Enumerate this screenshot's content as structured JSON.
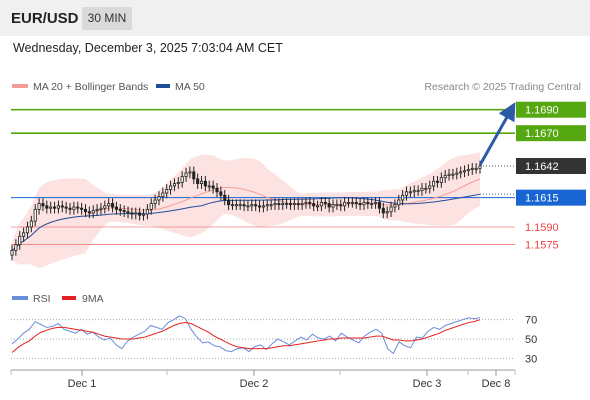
{
  "header": {
    "symbol": "EUR/USD",
    "timeframe": "30 MIN"
  },
  "timestamp": "Wednesday, December 3, 2025 7:03:04 AM CET",
  "legend": {
    "ma20_label": "MA 20 + Bollinger Bands",
    "ma20_color": "#f59c97",
    "ma50_label": "MA 50",
    "ma50_color": "#1f4e9a",
    "credit": "Research © 2025 Trading Central"
  },
  "rsi_legend": {
    "rsi_label": "RSI",
    "rsi_color": "#6a8ddb",
    "ma_label": "9MA",
    "ma_color": "#e52020"
  },
  "levels": [
    {
      "value": "1.1690",
      "kind": "resistance",
      "color": "#55a811"
    },
    {
      "value": "1.1670",
      "kind": "resistance",
      "color": "#55a811"
    },
    {
      "value": "1.1642",
      "kind": "last",
      "color": "#333333"
    },
    {
      "value": "1.1615",
      "kind": "pivot",
      "color": "#1964d3"
    },
    {
      "value": "1.1590",
      "kind": "support",
      "color": "#e84545"
    },
    {
      "value": "1.1575",
      "kind": "support",
      "color": "#e84545"
    }
  ],
  "chart_data": [
    {
      "type": "candlestick",
      "title": "",
      "x_ticks": [
        "Dec 1",
        "Dec 2",
        "Dec 3",
        "Dec 8"
      ],
      "ylim": [
        1.1555,
        1.17
      ],
      "series": [
        {
          "name": "MA 20 + Bollinger Bands",
          "color": "#f59c97"
        },
        {
          "name": "MA 50",
          "color": "#1f4e9a"
        }
      ],
      "close": [
        1.157,
        1.1575,
        1.1582,
        1.1585,
        1.159,
        1.1595,
        1.1605,
        1.161,
        1.1608,
        1.1606,
        1.1607,
        1.1606,
        1.1608,
        1.1607,
        1.1606,
        1.1605,
        1.1607,
        1.1606,
        1.1605,
        1.1603,
        1.1602,
        1.1604,
        1.1605,
        1.1606,
        1.1608,
        1.161,
        1.1607,
        1.1605,
        1.1604,
        1.1603,
        1.1602,
        1.1601,
        1.1602,
        1.16,
        1.1601,
        1.1605,
        1.161,
        1.1613,
        1.1616,
        1.1619,
        1.1622,
        1.1625,
        1.1627,
        1.1628,
        1.1633,
        1.1636,
        1.1637,
        1.1631,
        1.1627,
        1.1629,
        1.1625,
        1.1625,
        1.1623,
        1.162,
        1.1617,
        1.1613,
        1.1609,
        1.1609,
        1.1609,
        1.1609,
        1.1608,
        1.1608,
        1.1609,
        1.1608,
        1.1607,
        1.1608,
        1.1609,
        1.1609,
        1.161,
        1.1609,
        1.161,
        1.161,
        1.1609,
        1.161,
        1.1609,
        1.161,
        1.1611,
        1.161,
        1.1608,
        1.1608,
        1.1611,
        1.161,
        1.1607,
        1.1609,
        1.1609,
        1.1608,
        1.1611,
        1.1611,
        1.1611,
        1.161,
        1.1609,
        1.1611,
        1.161,
        1.161,
        1.1611,
        1.1606,
        1.1602,
        1.1603,
        1.1607,
        1.1609,
        1.1613,
        1.1617,
        1.162,
        1.162,
        1.1621,
        1.1621,
        1.1623,
        1.1623,
        1.1625,
        1.1629,
        1.1628,
        1.1632,
        1.1634,
        1.1635,
        1.1635,
        1.1636,
        1.1637,
        1.1638,
        1.1639,
        1.164,
        1.164,
        1.1642
      ],
      "rsi": {
        "ylim": [
          20,
          80
        ],
        "levels": [
          70,
          50,
          30
        ],
        "rsi": [
          45,
          50,
          56,
          60,
          68,
          65,
          62,
          63,
          66,
          60,
          58,
          56,
          60,
          55,
          57,
          52,
          49,
          51,
          44,
          40,
          48,
          52,
          55,
          58,
          64,
          62,
          60,
          67,
          70,
          74,
          71,
          60,
          52,
          46,
          47,
          43,
          42,
          38,
          37,
          40,
          41,
          37,
          42,
          44,
          39,
          45,
          50,
          47,
          44,
          48,
          52,
          49,
          55,
          51,
          50,
          53,
          48,
          56,
          52,
          49,
          46,
          53,
          57,
          60,
          56,
          40,
          35,
          47,
          43,
          41,
          52,
          51,
          58,
          62,
          60,
          64,
          66,
          68,
          70,
          72,
          71,
          72
        ],
        "ma": [
          36,
          41,
          45,
          48,
          53,
          57,
          59,
          61,
          62,
          62,
          61,
          60,
          59,
          58,
          57,
          55,
          53,
          52,
          51,
          50,
          50,
          50,
          51,
          52,
          54,
          56,
          58,
          61,
          64,
          66,
          67,
          66,
          63,
          60,
          57,
          53,
          50,
          47,
          44,
          42,
          41,
          40,
          40,
          40,
          40,
          41,
          42,
          43,
          43,
          44,
          45,
          46,
          47,
          48,
          49,
          50,
          50,
          51,
          51,
          51,
          51,
          51,
          52,
          53,
          53,
          51,
          49,
          49,
          48,
          48,
          49,
          50,
          52,
          54,
          56,
          59,
          61,
          63,
          65,
          67,
          68,
          70
        ]
      }
    }
  ]
}
